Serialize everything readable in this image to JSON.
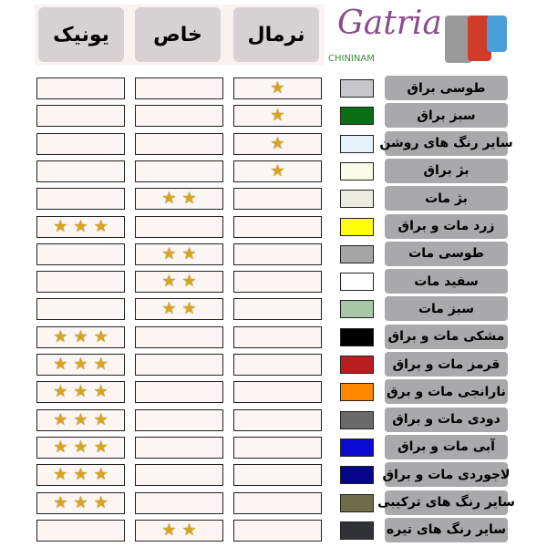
{
  "headers": {
    "unique": "یونیک",
    "special": "خاص",
    "normal": "نرمال"
  },
  "logo": {
    "brand": "Gatria",
    "sub": "CHINI NAM"
  },
  "colors": [
    {
      "label": "طوسی براق",
      "color": "#c8c8cc",
      "normal": 1,
      "special": 0,
      "unique": 0
    },
    {
      "label": "سبز براق",
      "color": "#0a6e14",
      "normal": 1,
      "special": 0,
      "unique": 0
    },
    {
      "label": "سایر رنگ های روشن",
      "color": "#e6f2fa",
      "normal": 1,
      "special": 0,
      "unique": 0
    },
    {
      "label": "بژ براق",
      "color": "#fbfbea",
      "normal": 1,
      "special": 0,
      "unique": 0
    },
    {
      "label": "بژ مات",
      "color": "#ebebe0",
      "normal": 0,
      "special": 2,
      "unique": 0
    },
    {
      "label": "زرد مات و براق",
      "color": "#ffff0a",
      "normal": 0,
      "special": 0,
      "unique": 3
    },
    {
      "label": "طوسی مات",
      "color": "#a5a5a5",
      "normal": 0,
      "special": 2,
      "unique": 0
    },
    {
      "label": "سفید مات",
      "color": "#ffffff",
      "normal": 0,
      "special": 2,
      "unique": 0
    },
    {
      "label": "سبز مات",
      "color": "#a8c8a5",
      "normal": 0,
      "special": 2,
      "unique": 0
    },
    {
      "label": "مشکی مات و براق",
      "color": "#000000",
      "normal": 0,
      "special": 0,
      "unique": 3
    },
    {
      "label": "قرمز مات و براق",
      "color": "#b81e1e",
      "normal": 0,
      "special": 0,
      "unique": 3
    },
    {
      "label": "نارانجی مات و برق",
      "color": "#ff8800",
      "normal": 0,
      "special": 0,
      "unique": 3
    },
    {
      "label": "دودی مات و براق",
      "color": "#6a6a6a",
      "normal": 0,
      "special": 0,
      "unique": 3
    },
    {
      "label": "آبی مات و براق",
      "color": "#0a0ad2",
      "normal": 0,
      "special": 0,
      "unique": 3
    },
    {
      "label": "لاجوردی مات و براق",
      "color": "#05058c",
      "normal": 0,
      "special": 0,
      "unique": 3
    },
    {
      "label": "سایر رنگ های ترکیبی",
      "color": "#6e6e4c",
      "normal": 0,
      "special": 0,
      "unique": 3
    },
    {
      "label": "سایر رنگ های تیره",
      "color": "#303236",
      "normal": 0,
      "special": 2,
      "unique": 0
    }
  ]
}
